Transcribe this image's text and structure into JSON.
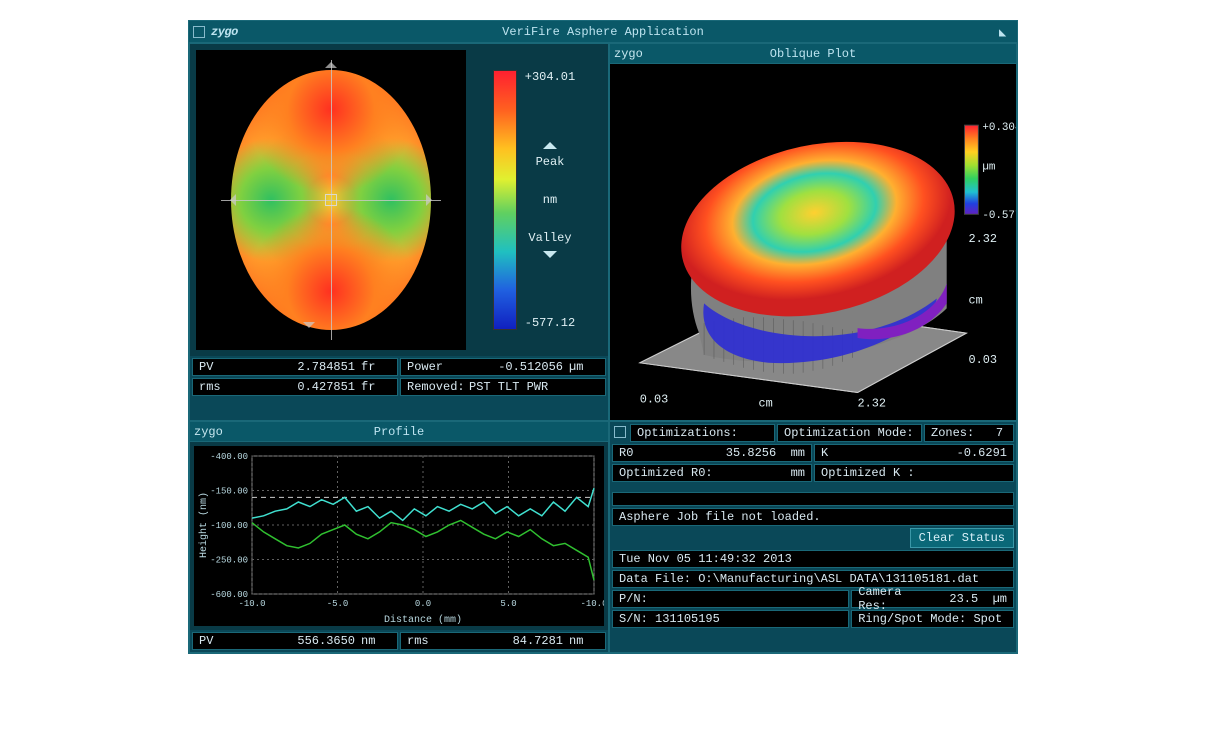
{
  "app": {
    "title": "VeriFire Asphere Application",
    "logo": "zygo"
  },
  "plot2d": {
    "colorbar": {
      "max_label": "+304.01",
      "min_label": "-577.12",
      "peak_label": "Peak",
      "valley_label": "Valley",
      "unit": "nm",
      "gradient_colors": [
        "#ff2030",
        "#ff6020",
        "#ffc020",
        "#e0f030",
        "#60d060",
        "#20c0c0",
        "#2060e0",
        "#1020c0"
      ]
    },
    "stats": {
      "pv": {
        "label": "PV",
        "value": "2.784851",
        "unit": "fr"
      },
      "power": {
        "label": "Power",
        "value": "-0.512056",
        "unit": "µm"
      },
      "rms": {
        "label": "rms",
        "value": "0.427851",
        "unit": "fr"
      },
      "removed": {
        "label": "Removed:",
        "value": "PST TLT PWR"
      }
    }
  },
  "oblique": {
    "title": "Oblique Plot",
    "colorbar": {
      "max": "+0.30401",
      "min": "-0.577124",
      "unit": "µm",
      "gradient_colors": [
        "#ff2030",
        "#ff8020",
        "#ffd020",
        "#a0e030",
        "#30d060",
        "#20c0d0",
        "#2040e0",
        "#6020c0"
      ]
    },
    "axes": {
      "x_label": "cm",
      "x_min": "0.03",
      "x_max": "2.32",
      "y_label": "cm",
      "y_min": "0.03",
      "y_max": "2.32"
    }
  },
  "profile": {
    "title": "Profile",
    "x_label": "Distance (mm)",
    "y_label": "Height (nm)",
    "x_ticks": [
      "-10.0",
      "-5.0",
      "0.0",
      "5.0",
      "-10.0"
    ],
    "y_ticks": [
      "-400.00",
      "-150.00",
      "-100.00",
      "-250.00",
      "-600.00"
    ],
    "series": [
      {
        "color": "#40e0d0",
        "points": [
          [
            0,
            54
          ],
          [
            8,
            52
          ],
          [
            16,
            48
          ],
          [
            24,
            46
          ],
          [
            32,
            40
          ],
          [
            40,
            44
          ],
          [
            48,
            38
          ],
          [
            56,
            42
          ],
          [
            64,
            36
          ],
          [
            72,
            48
          ],
          [
            80,
            44
          ],
          [
            88,
            54
          ],
          [
            96,
            48
          ],
          [
            104,
            56
          ],
          [
            112,
            46
          ],
          [
            120,
            52
          ],
          [
            128,
            44
          ],
          [
            136,
            48
          ],
          [
            144,
            42
          ],
          [
            152,
            46
          ],
          [
            160,
            40
          ],
          [
            168,
            50
          ],
          [
            176,
            44
          ],
          [
            184,
            52
          ],
          [
            192,
            46
          ],
          [
            200,
            52
          ],
          [
            208,
            40
          ],
          [
            216,
            48
          ],
          [
            224,
            36
          ],
          [
            232,
            44
          ],
          [
            236,
            28
          ]
        ]
      },
      {
        "color": "#30c030",
        "points": [
          [
            0,
            58
          ],
          [
            8,
            66
          ],
          [
            16,
            72
          ],
          [
            24,
            78
          ],
          [
            32,
            80
          ],
          [
            40,
            76
          ],
          [
            48,
            68
          ],
          [
            56,
            64
          ],
          [
            64,
            60
          ],
          [
            72,
            68
          ],
          [
            80,
            72
          ],
          [
            88,
            66
          ],
          [
            96,
            58
          ],
          [
            104,
            60
          ],
          [
            112,
            64
          ],
          [
            120,
            70
          ],
          [
            128,
            66
          ],
          [
            136,
            60
          ],
          [
            144,
            56
          ],
          [
            152,
            62
          ],
          [
            160,
            68
          ],
          [
            168,
            72
          ],
          [
            176,
            66
          ],
          [
            184,
            70
          ],
          [
            192,
            64
          ],
          [
            200,
            72
          ],
          [
            208,
            78
          ],
          [
            216,
            76
          ],
          [
            224,
            82
          ],
          [
            232,
            88
          ],
          [
            236,
            108
          ]
        ]
      }
    ],
    "grid_color": "#606060",
    "stats": {
      "pv": {
        "label": "PV",
        "value": "556.3650",
        "unit": "nm"
      },
      "rms": {
        "label": "rms",
        "value": "84.7281",
        "unit": "nm"
      }
    }
  },
  "info": {
    "optimizations_label": "Optimizations:",
    "opt_mode_label": "Optimization Mode:",
    "zones_label": "Zones:",
    "zones_value": "7",
    "r0_label": "R0",
    "r0_value": "35.8256",
    "r0_unit": "mm",
    "k_label": "K",
    "k_value": "-0.6291",
    "opt_r0_label": "Optimized R0:",
    "opt_r0_unit": "mm",
    "opt_k_label": "Optimized K :",
    "status_msg": "Asphere Job file not loaded.",
    "clear_button": "Clear Status",
    "timestamp": "Tue Nov 05 11:49:32 2013",
    "datafile_label": "Data File:",
    "datafile_value": "O:\\Manufacturing\\ASL DATA\\131105181.dat",
    "pn_label": "P/N:",
    "camera_res_label": "Camera Res:",
    "camera_res_value": "23.5",
    "camera_res_unit": "µm",
    "sn_label": "S/N:",
    "sn_value": "131105195",
    "ring_spot_label": "Ring/Spot Mode:",
    "ring_spot_value": "Spot"
  }
}
